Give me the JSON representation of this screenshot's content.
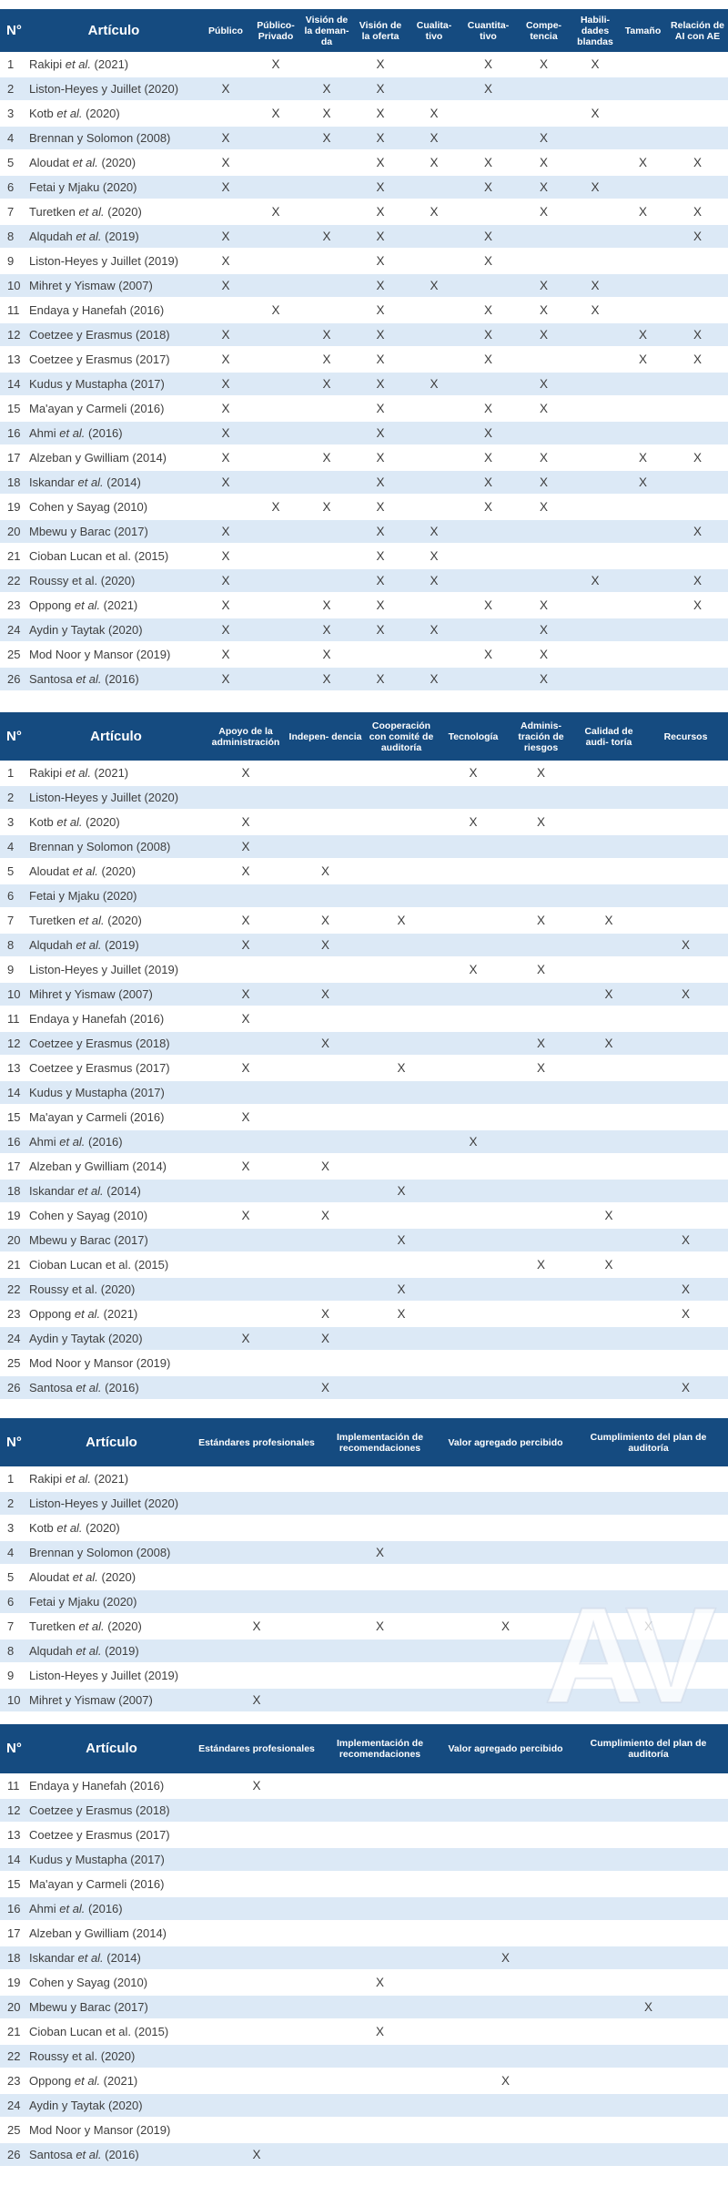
{
  "colors": {
    "header_bg": "#154b80",
    "header_text": "#ffffff",
    "row_alt_bg": "#dce9f6",
    "body_text": "#3e3e3e"
  },
  "watermark": {
    "text": "AV"
  },
  "mark_glyph": "X",
  "articles": {
    "1": {
      "name": "Rakipi et al. (2021)",
      "italic_et_al": true
    },
    "2": {
      "name": "Liston-Heyes y Juillet (2020)",
      "italic_et_al": false
    },
    "3": {
      "name": "Kotb et al. (2020)",
      "italic_et_al": true
    },
    "4": {
      "name": "Brennan y Solomon (2008)",
      "italic_et_al": false
    },
    "5": {
      "name": "Aloudat et al. (2020)",
      "italic_et_al": true
    },
    "6": {
      "name": "Fetai y Mjaku (2020)",
      "italic_et_al": false
    },
    "7": {
      "name": "Turetken et al. (2020)",
      "italic_et_al": true
    },
    "8": {
      "name": "Alqudah et al. (2019)",
      "italic_et_al": true
    },
    "9": {
      "name": "Liston-Heyes y Juillet (2019)",
      "italic_et_al": false
    },
    "10": {
      "name": "Mihret y Yismaw (2007)",
      "italic_et_al": false
    },
    "11": {
      "name": "Endaya y Hanefah (2016)",
      "italic_et_al": false
    },
    "12": {
      "name": "Coetzee y Erasmus (2018)",
      "italic_et_al": false
    },
    "13": {
      "name": "Coetzee y Erasmus (2017)",
      "italic_et_al": false
    },
    "14": {
      "name": "Kudus y Mustapha (2017)",
      "italic_et_al": false
    },
    "15": {
      "name": "Ma'ayan y Carmeli (2016)",
      "italic_et_al": false
    },
    "16": {
      "name": "Ahmi et al. (2016)",
      "italic_et_al": true
    },
    "17": {
      "name": "Alzeban y Gwilliam (2014)",
      "italic_et_al": false
    },
    "18": {
      "name": "Iskandar et al. (2014)",
      "italic_et_al": true
    },
    "19": {
      "name": "Cohen y Sayag (2010)",
      "italic_et_al": false
    },
    "20": {
      "name": "Mbewu y Barac (2017)",
      "italic_et_al": false
    },
    "21": {
      "name": "Cioban Lucan et al. (2015)",
      "italic_et_al": false
    },
    "22": {
      "name": "Roussy et al. (2020)",
      "italic_et_al": false
    },
    "23": {
      "name": "Oppong et al. (2021)",
      "italic_et_al": true
    },
    "24": {
      "name": "Aydin y Taytak (2020)",
      "italic_et_al": false
    },
    "25": {
      "name": "Mod Noor y Mansor (2019)",
      "italic_et_al": false
    },
    "26": {
      "name": "Santosa et al. (2016)",
      "italic_et_al": true
    }
  },
  "tables": [
    {
      "header": {
        "n": "N°",
        "article": "Artículo"
      },
      "columns": [
        "Público",
        "Público- Privado",
        "Visión de la deman- da",
        "Visión de la oferta",
        "Cualita- tivo",
        "Cuantita- tivo",
        "Compe- tencia",
        "Habili- dades blandas",
        "Tamaño",
        "Relación de AI con AE"
      ],
      "rows": [
        {
          "n": 1,
          "cells": [
            "",
            "X",
            "",
            "X",
            "",
            "X",
            "X",
            "X",
            "",
            ""
          ]
        },
        {
          "n": 2,
          "cells": [
            "X",
            "",
            "X",
            "X",
            "",
            "X",
            "",
            "",
            "",
            ""
          ]
        },
        {
          "n": 3,
          "cells": [
            "",
            "X",
            "X",
            "X",
            "X",
            "",
            "",
            "X",
            "",
            ""
          ]
        },
        {
          "n": 4,
          "cells": [
            "X",
            "",
            "X",
            "X",
            "X",
            "",
            "X",
            "",
            "",
            ""
          ]
        },
        {
          "n": 5,
          "cells": [
            "X",
            "",
            "",
            "X",
            "X",
            "X",
            "X",
            "",
            "X",
            "X"
          ]
        },
        {
          "n": 6,
          "cells": [
            "X",
            "",
            "",
            "X",
            "",
            "X",
            "X",
            "X",
            "",
            ""
          ]
        },
        {
          "n": 7,
          "cells": [
            "",
            "X",
            "",
            "X",
            "X",
            "",
            "X",
            "",
            "X",
            "X"
          ]
        },
        {
          "n": 8,
          "cells": [
            "X",
            "",
            "X",
            "X",
            "",
            "X",
            "",
            "",
            "",
            "X"
          ]
        },
        {
          "n": 9,
          "cells": [
            "X",
            "",
            "",
            "X",
            "",
            "X",
            "",
            "",
            "",
            ""
          ]
        },
        {
          "n": 10,
          "cells": [
            "X",
            "",
            "",
            "X",
            "X",
            "",
            "X",
            "X",
            "",
            ""
          ]
        },
        {
          "n": 11,
          "cells": [
            "",
            "X",
            "",
            "X",
            "",
            "X",
            "X",
            "X",
            "",
            ""
          ]
        },
        {
          "n": 12,
          "cells": [
            "X",
            "",
            "X",
            "X",
            "",
            "X",
            "X",
            "",
            "X",
            "X"
          ]
        },
        {
          "n": 13,
          "cells": [
            "X",
            "",
            "X",
            "X",
            "",
            "X",
            "",
            "",
            "X",
            "X"
          ]
        },
        {
          "n": 14,
          "cells": [
            "X",
            "",
            "X",
            "X",
            "X",
            "",
            "X",
            "",
            "",
            ""
          ]
        },
        {
          "n": 15,
          "cells": [
            "X",
            "",
            "",
            "X",
            "",
            "X",
            "X",
            "",
            "",
            ""
          ]
        },
        {
          "n": 16,
          "cells": [
            "X",
            "",
            "",
            "X",
            "",
            "X",
            "",
            "",
            "",
            ""
          ]
        },
        {
          "n": 17,
          "cells": [
            "X",
            "",
            "X",
            "X",
            "",
            "X",
            "X",
            "",
            "X",
            "X"
          ]
        },
        {
          "n": 18,
          "cells": [
            "X",
            "",
            "",
            "X",
            "",
            "X",
            "X",
            "",
            "X",
            ""
          ]
        },
        {
          "n": 19,
          "cells": [
            "",
            "X",
            "X",
            "X",
            "",
            "X",
            "X",
            "",
            "",
            ""
          ]
        },
        {
          "n": 20,
          "cells": [
            "X",
            "",
            "",
            "X",
            "X",
            "",
            "",
            "",
            "",
            "X"
          ]
        },
        {
          "n": 21,
          "cells": [
            "X",
            "",
            "",
            "X",
            "X",
            "",
            "",
            "",
            "",
            ""
          ]
        },
        {
          "n": 22,
          "cells": [
            "X",
            "",
            "",
            "X",
            "X",
            "",
            "",
            "X",
            "",
            "X"
          ]
        },
        {
          "n": 23,
          "cells": [
            "X",
            "",
            "X",
            "X",
            "",
            "X",
            "X",
            "",
            "",
            "X"
          ]
        },
        {
          "n": 24,
          "cells": [
            "X",
            "",
            "X",
            "X",
            "X",
            "",
            "X",
            "",
            "",
            ""
          ]
        },
        {
          "n": 25,
          "cells": [
            "X",
            "",
            "X",
            "",
            "",
            "X",
            "X",
            "",
            "",
            ""
          ]
        },
        {
          "n": 26,
          "cells": [
            "X",
            "",
            "X",
            "X",
            "X",
            "",
            "X",
            "",
            "",
            ""
          ]
        }
      ]
    },
    {
      "header": {
        "n": "N°",
        "article": "Artículo"
      },
      "columns": [
        "Apoyo de la administración",
        "Indepen- dencia",
        "Cooperación con comité de auditoría",
        "Tecnología",
        "Adminis- tración de riesgos",
        "Calidad de audi- toría",
        "Recursos"
      ],
      "rows": [
        {
          "n": 1,
          "cells": [
            "X",
            "",
            "",
            "X",
            "X",
            "",
            ""
          ]
        },
        {
          "n": 2,
          "cells": [
            "",
            "",
            "",
            "",
            "",
            "",
            ""
          ]
        },
        {
          "n": 3,
          "cells": [
            "X",
            "",
            "",
            "X",
            "X",
            "",
            ""
          ]
        },
        {
          "n": 4,
          "cells": [
            "X",
            "",
            "",
            "",
            "",
            "",
            ""
          ]
        },
        {
          "n": 5,
          "cells": [
            "X",
            "X",
            "",
            "",
            "",
            "",
            ""
          ]
        },
        {
          "n": 6,
          "cells": [
            "",
            "",
            "",
            "",
            "",
            "",
            ""
          ]
        },
        {
          "n": 7,
          "cells": [
            "X",
            "X",
            "X",
            "",
            "X",
            "X",
            ""
          ]
        },
        {
          "n": 8,
          "cells": [
            "X",
            "X",
            "",
            "",
            "",
            "",
            "X"
          ]
        },
        {
          "n": 9,
          "cells": [
            "",
            "",
            "",
            "X",
            "X",
            "",
            ""
          ]
        },
        {
          "n": 10,
          "cells": [
            "X",
            "X",
            "",
            "",
            "",
            "X",
            "X"
          ]
        },
        {
          "n": 11,
          "cells": [
            "X",
            "",
            "",
            "",
            "",
            "",
            ""
          ]
        },
        {
          "n": 12,
          "cells": [
            "",
            "X",
            "",
            "",
            "X",
            "X",
            ""
          ]
        },
        {
          "n": 13,
          "cells": [
            "X",
            "",
            "X",
            "",
            "X",
            "",
            ""
          ]
        },
        {
          "n": 14,
          "cells": [
            "",
            "",
            "",
            "",
            "",
            "",
            ""
          ]
        },
        {
          "n": 15,
          "cells": [
            "X",
            "",
            "",
            "",
            "",
            "",
            ""
          ]
        },
        {
          "n": 16,
          "cells": [
            "",
            "",
            "",
            "X",
            "",
            "",
            ""
          ]
        },
        {
          "n": 17,
          "cells": [
            "X",
            "X",
            "",
            "",
            "",
            "",
            ""
          ]
        },
        {
          "n": 18,
          "cells": [
            "",
            "",
            "X",
            "",
            "",
            "",
            ""
          ]
        },
        {
          "n": 19,
          "cells": [
            "X",
            "X",
            "",
            "",
            "",
            "X",
            ""
          ]
        },
        {
          "n": 20,
          "cells": [
            "",
            "",
            "X",
            "",
            "",
            "",
            "X"
          ]
        },
        {
          "n": 21,
          "cells": [
            "",
            "",
            "",
            "",
            "X",
            "X",
            ""
          ]
        },
        {
          "n": 22,
          "cells": [
            "",
            "",
            "X",
            "",
            "",
            "",
            "X"
          ]
        },
        {
          "n": 23,
          "cells": [
            "",
            "X",
            "X",
            "",
            "",
            "",
            "X"
          ]
        },
        {
          "n": 24,
          "cells": [
            "X",
            "X",
            "",
            "",
            "",
            "",
            ""
          ]
        },
        {
          "n": 25,
          "cells": [
            "",
            "",
            "",
            "",
            "",
            "",
            ""
          ]
        },
        {
          "n": 26,
          "cells": [
            "",
            "X",
            "",
            "",
            "",
            "",
            "X"
          ]
        }
      ]
    },
    {
      "header": {
        "n": "N°",
        "article": "Artículo"
      },
      "columns": [
        "Estándares profesionales",
        "Implementación de recomendaciones",
        "Valor agregado percibido",
        "Cumplimiento del plan de auditoría"
      ],
      "rows": [
        {
          "n": 1,
          "cells": [
            "",
            "",
            "",
            ""
          ]
        },
        {
          "n": 2,
          "cells": [
            "",
            "",
            "",
            ""
          ]
        },
        {
          "n": 3,
          "cells": [
            "",
            "",
            "",
            ""
          ]
        },
        {
          "n": 4,
          "cells": [
            "",
            "X",
            "",
            ""
          ]
        },
        {
          "n": 5,
          "cells": [
            "",
            "",
            "",
            ""
          ]
        },
        {
          "n": 6,
          "cells": [
            "",
            "",
            "",
            ""
          ]
        },
        {
          "n": 7,
          "cells": [
            "X",
            "X",
            "X",
            "X"
          ]
        },
        {
          "n": 8,
          "cells": [
            "",
            "",
            "",
            ""
          ]
        },
        {
          "n": 9,
          "cells": [
            "",
            "",
            "",
            ""
          ]
        },
        {
          "n": 10,
          "cells": [
            "X",
            "",
            "",
            ""
          ]
        }
      ]
    },
    {
      "header": {
        "n": "N°",
        "article": "Artículo"
      },
      "columns": [
        "Estándares profesionales",
        "Implementación de recomendaciones",
        "Valor agregado percibido",
        "Cumplimiento del plan de auditoría"
      ],
      "rows": [
        {
          "n": 11,
          "cells": [
            "X",
            "",
            "",
            ""
          ]
        },
        {
          "n": 12,
          "cells": [
            "",
            "",
            "",
            ""
          ]
        },
        {
          "n": 13,
          "cells": [
            "",
            "",
            "",
            ""
          ]
        },
        {
          "n": 14,
          "cells": [
            "",
            "",
            "",
            ""
          ]
        },
        {
          "n": 15,
          "cells": [
            "",
            "",
            "",
            ""
          ]
        },
        {
          "n": 16,
          "cells": [
            "",
            "",
            "",
            ""
          ]
        },
        {
          "n": 17,
          "cells": [
            "",
            "",
            "",
            ""
          ]
        },
        {
          "n": 18,
          "cells": [
            "",
            "",
            "X",
            ""
          ]
        },
        {
          "n": 19,
          "cells": [
            "",
            "X",
            "",
            ""
          ]
        },
        {
          "n": 20,
          "cells": [
            "",
            "",
            "",
            "X"
          ]
        },
        {
          "n": 21,
          "cells": [
            "",
            "X",
            "",
            ""
          ]
        },
        {
          "n": 22,
          "cells": [
            "",
            "",
            "",
            ""
          ]
        },
        {
          "n": 23,
          "cells": [
            "",
            "",
            "X",
            ""
          ]
        },
        {
          "n": 24,
          "cells": [
            "",
            "",
            "",
            ""
          ]
        },
        {
          "n": 25,
          "cells": [
            "",
            "",
            "",
            ""
          ]
        },
        {
          "n": 26,
          "cells": [
            "X",
            "",
            "",
            ""
          ]
        }
      ]
    }
  ]
}
